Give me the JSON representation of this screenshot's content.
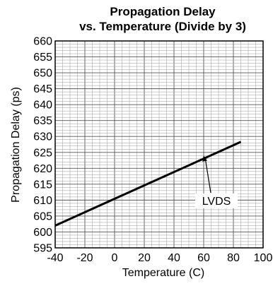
{
  "chart_data": {
    "type": "line",
    "title_line1": "Propagation Delay",
    "title_line2": "vs. Temperature (Divide by 3)",
    "xlabel": "Temperature (C)",
    "ylabel": "Propagation Delay (ps)",
    "xlim": [
      -40,
      100
    ],
    "ylim": [
      595,
      660
    ],
    "xticks": [
      -40,
      -20,
      0,
      20,
      40,
      60,
      80,
      100
    ],
    "yticks": [
      595,
      600,
      605,
      610,
      615,
      620,
      625,
      630,
      635,
      640,
      645,
      650,
      655,
      660
    ],
    "grid": true,
    "series": [
      {
        "name": "LVDS",
        "x": [
          -40,
          85
        ],
        "y": [
          602,
          628.3
        ]
      }
    ],
    "annotation": {
      "text": "LVDS",
      "points_to": {
        "x": 60,
        "y": 624
      }
    }
  }
}
